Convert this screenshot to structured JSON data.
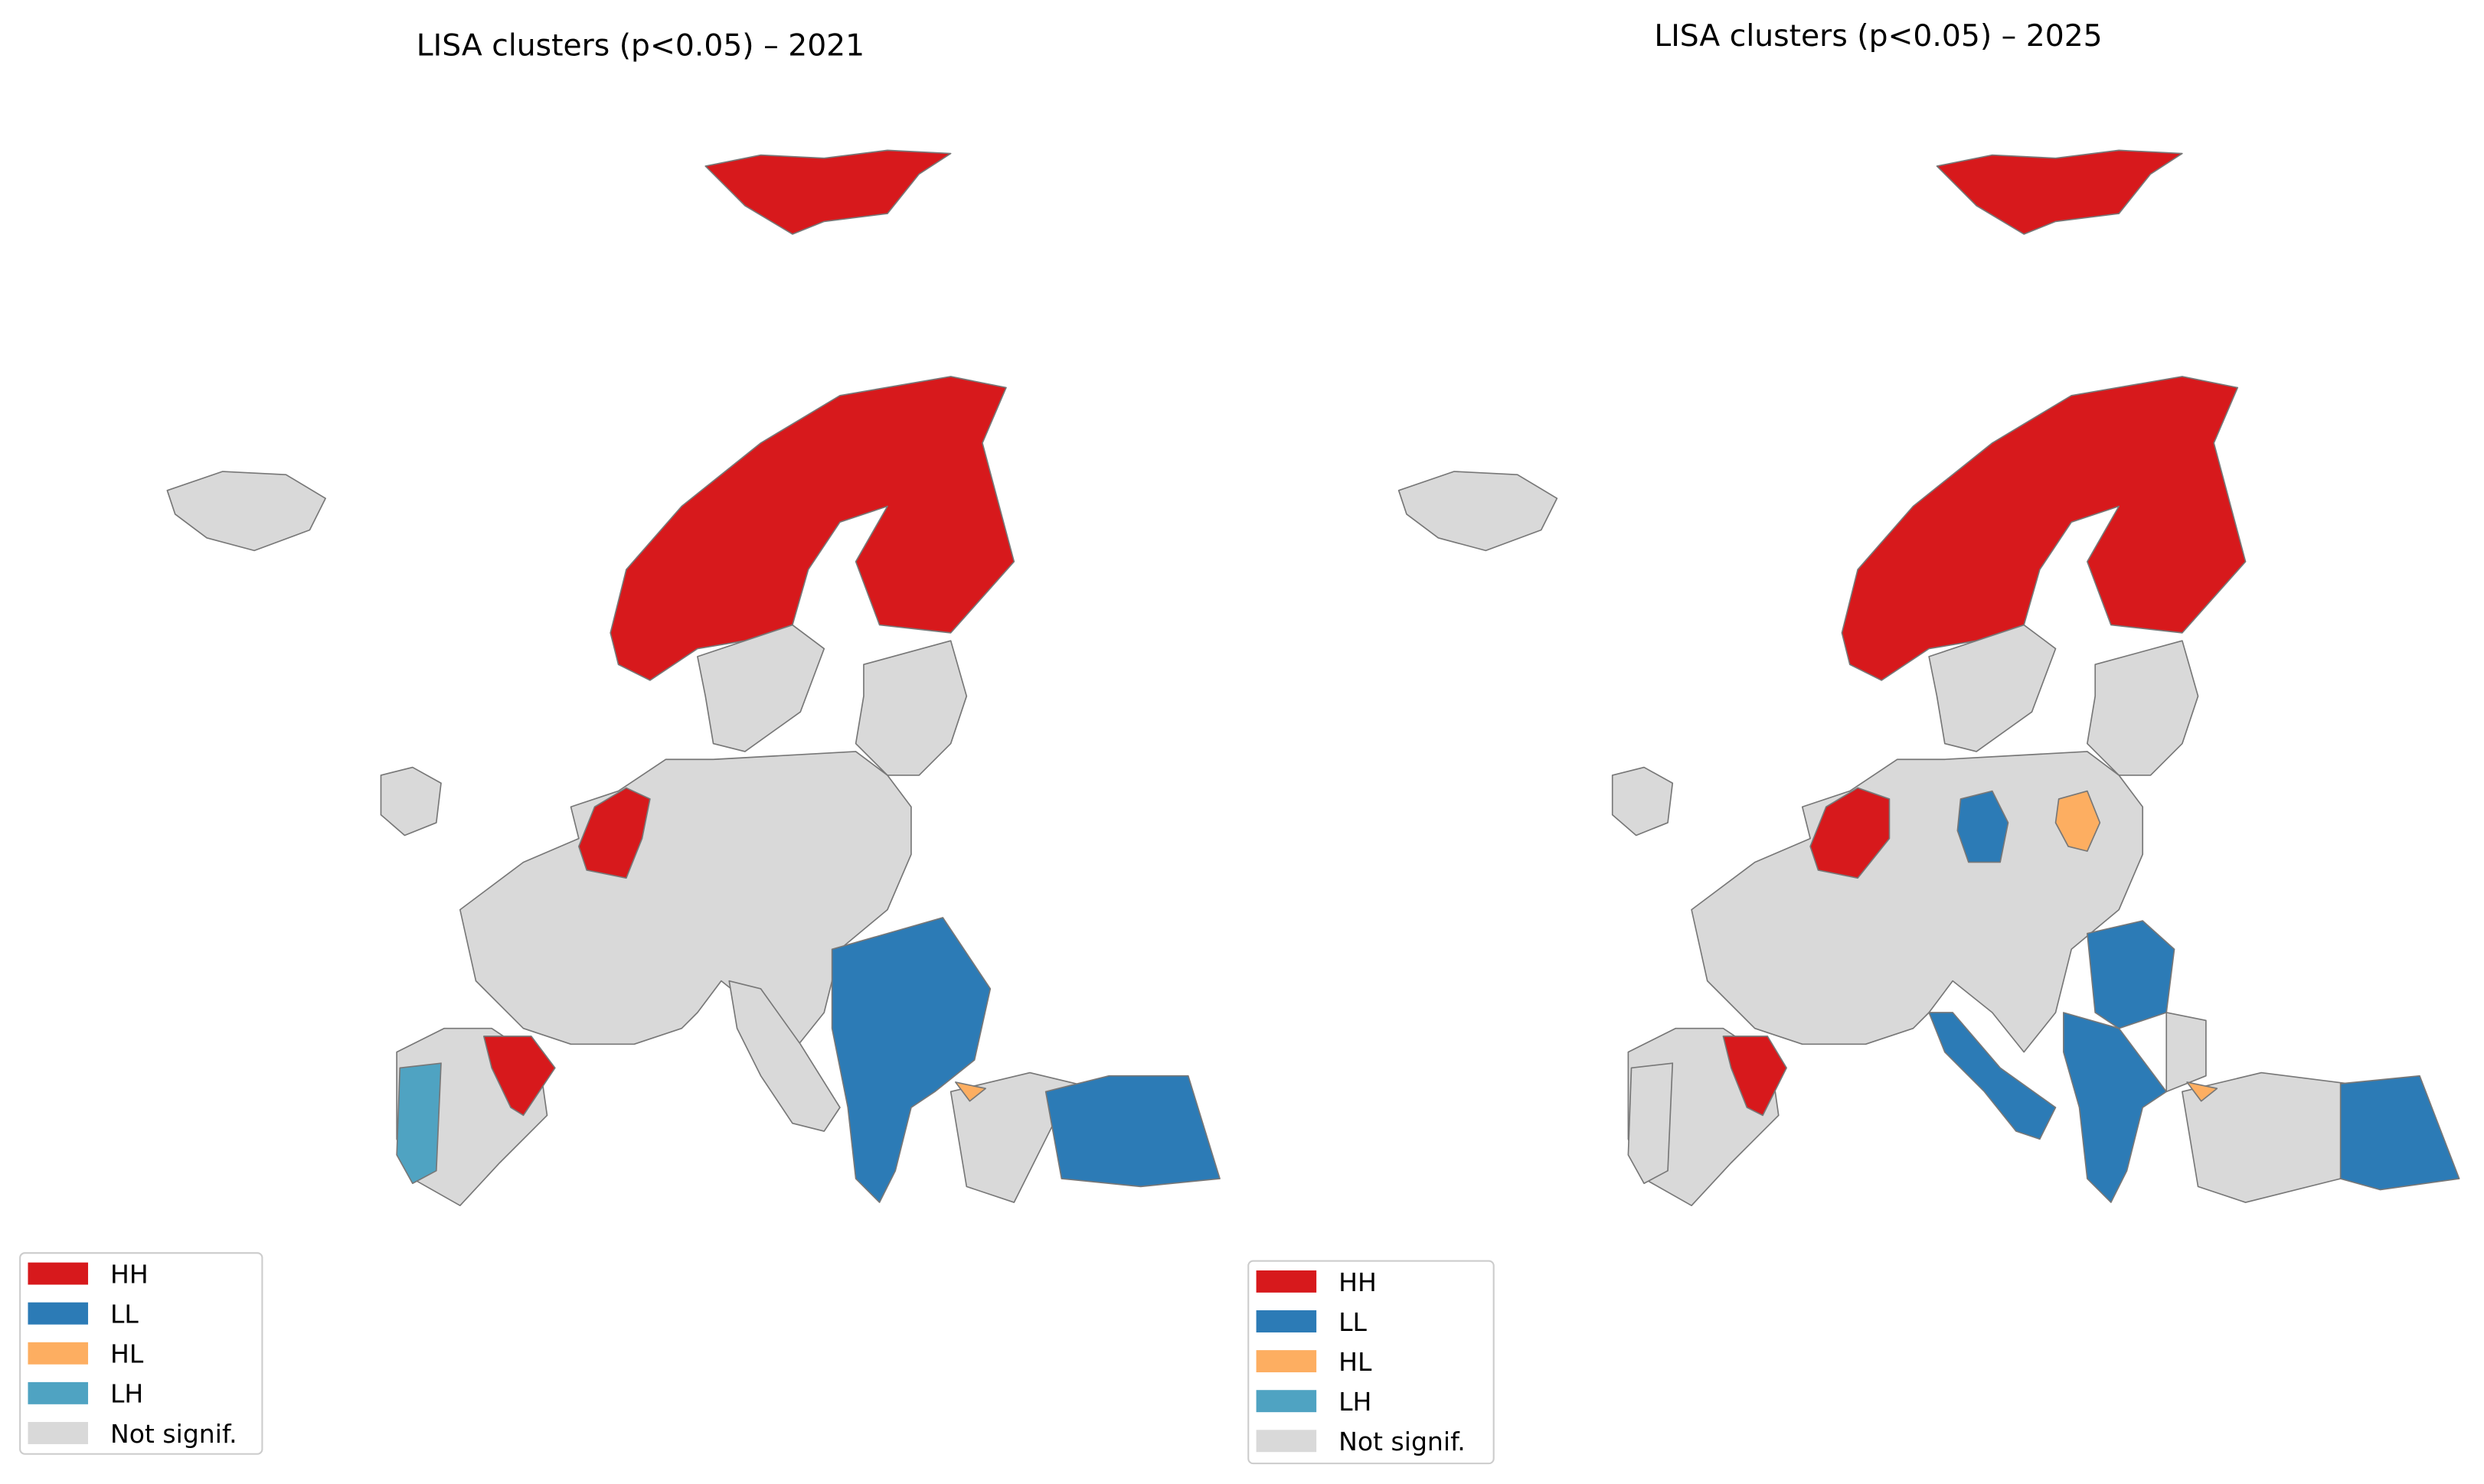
{
  "maps": [
    {
      "title": "LISA clusters (p<0.05) – 2021",
      "legend": [
        {
          "label": "HH",
          "color": "#d7191c"
        },
        {
          "label": "LL",
          "color": "#2c7bb6"
        },
        {
          "label": "HL",
          "color": "#fdae61"
        },
        {
          "label": "LH",
          "color": "#4fa3c2"
        },
        {
          "label": "Not signif.",
          "color": "#d9d9d9"
        }
      ]
    },
    {
      "title": "LISA clusters (p<0.05) – 2025",
      "legend": [
        {
          "label": "HH",
          "color": "#d7191c"
        },
        {
          "label": "LL",
          "color": "#2c7bb6"
        },
        {
          "label": "HL",
          "color": "#fdae61"
        },
        {
          "label": "LH",
          "color": "#4fa3c2"
        },
        {
          "label": "Not signif.",
          "color": "#d9d9d9"
        }
      ]
    }
  ]
}
